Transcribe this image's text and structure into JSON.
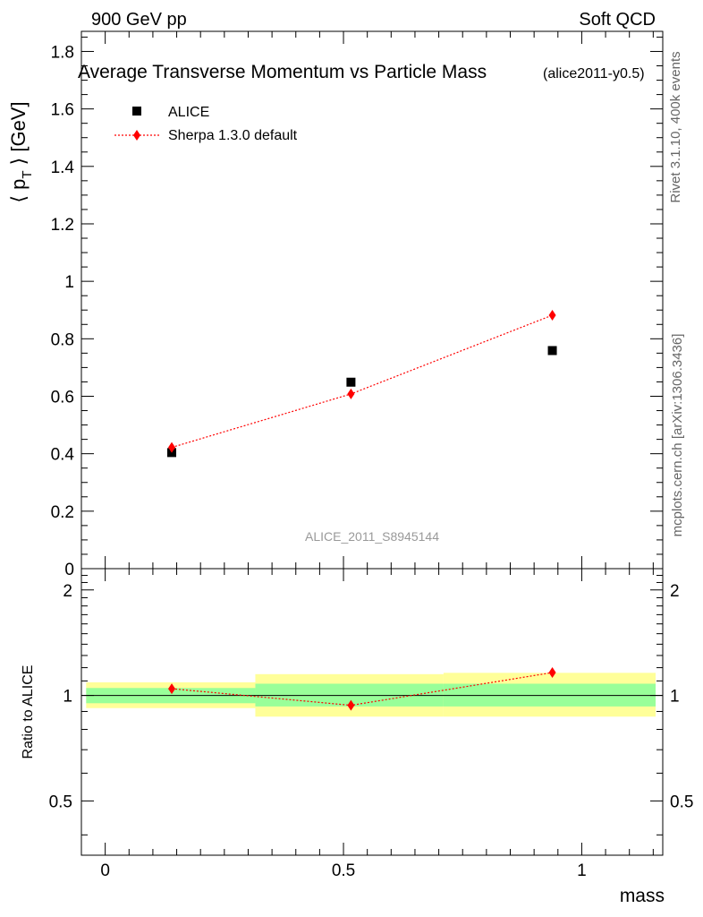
{
  "header": {
    "left_label": "900 GeV pp",
    "right_label": "Soft QCD",
    "side_label_top": "Rivet 3.1.10,  400k events",
    "side_label_bottom": "mcplots.cern.ch [arXiv:1306.3436]"
  },
  "chart_data": [
    {
      "type": "scatter",
      "title": "Average Transverse Momentum vs Particle Mass",
      "subtitle": "(alice2011-y0.5)",
      "ylabel_main": "⟨ p",
      "ylabel_sub": "T",
      "ylabel_unit": " ⟩ [GeV]",
      "xlim": [
        -0.05,
        1.17
      ],
      "ylim": [
        0,
        1.87
      ],
      "yticks": [
        0,
        0.2,
        0.4,
        0.6,
        0.8,
        1,
        1.2,
        1.4,
        1.6,
        1.8
      ],
      "ytick_labels": [
        "0",
        "0.2",
        "0.4",
        "0.6",
        "0.8",
        "1",
        "1.2",
        "1.4",
        "1.6",
        "1.8"
      ],
      "watermark": "ALICE_2011_S8945144",
      "legend_position": "top-left",
      "series": [
        {
          "name": "ALICE",
          "color": "#000000",
          "marker": "square",
          "x": [
            0.1396,
            0.5157,
            0.9383
          ],
          "y": [
            0.404,
            0.649,
            0.759
          ]
        },
        {
          "name": "Sherpa 1.3.0 default",
          "color": "#ff0000",
          "marker": "diamond",
          "line": "dotted",
          "x": [
            0.1396,
            0.5157,
            0.9383
          ],
          "y": [
            0.422,
            0.608,
            0.882
          ]
        }
      ]
    },
    {
      "type": "scatter",
      "ylabel": "Ratio to ALICE",
      "xlabel": "mass",
      "xlim": [
        -0.05,
        1.17
      ],
      "ylim": [
        0.35,
        2.3
      ],
      "scale": "log",
      "xticks": [
        0,
        0.5,
        1
      ],
      "xtick_labels": [
        "0",
        "0.5",
        "1"
      ],
      "yticks": [
        0.5,
        1,
        2
      ],
      "ytick_labels": [
        "0.5",
        "1",
        "2"
      ],
      "reference_line": 1,
      "bands": [
        {
          "x0": -0.04,
          "x1": 0.315,
          "inner": [
            0.95,
            1.05
          ],
          "outer": [
            0.92,
            1.09
          ]
        },
        {
          "x0": 0.315,
          "x1": 0.71,
          "inner": [
            0.93,
            1.08
          ],
          "outer": [
            0.87,
            1.15
          ]
        },
        {
          "x0": 0.71,
          "x1": 1.155,
          "inner": [
            0.93,
            1.08
          ],
          "outer": [
            0.87,
            1.16
          ]
        }
      ],
      "band_colors": {
        "inner": "#99ff99",
        "outer": "#ffff99"
      },
      "series": [
        {
          "name": "Sherpa 1.3.0 default",
          "color": "#ff0000",
          "marker": "diamond",
          "line": "dotted",
          "x": [
            0.1396,
            0.5157,
            0.9383
          ],
          "y": [
            1.045,
            0.937,
            1.162
          ]
        }
      ]
    }
  ]
}
